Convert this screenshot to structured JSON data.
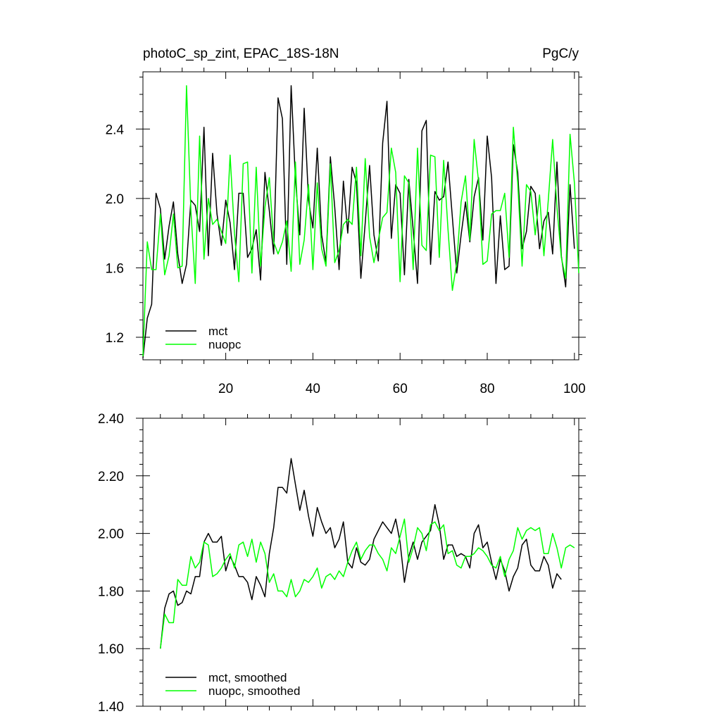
{
  "chart_data": [
    {
      "type": "line",
      "title": "photoC_sp_zint, EPAC_18S-18N",
      "units": "PgC/y",
      "xlim": [
        1,
        101
      ],
      "ylim": [
        1.07,
        2.73
      ],
      "x_ticks": [
        20,
        40,
        60,
        80,
        100
      ],
      "y_ticks": [
        1.2,
        1.6,
        2.0,
        2.4
      ],
      "y_tick_labels": [
        "1.2",
        "1.6",
        "2.0",
        "2.4"
      ],
      "grid": false,
      "legend_position": "bottom-left",
      "series": [
        {
          "name": "mct",
          "color": "#000000",
          "x_start": 1,
          "values": [
            1.08,
            1.31,
            1.39,
            2.03,
            1.94,
            1.65,
            1.84,
            1.98,
            1.68,
            1.51,
            1.62,
            1.99,
            1.96,
            1.81,
            2.41,
            1.67,
            2.26,
            1.91,
            1.73,
            1.99,
            1.86,
            1.59,
            2.03,
            2.03,
            1.66,
            1.71,
            1.82,
            1.53,
            2.15,
            1.93,
            1.68,
            2.58,
            2.46,
            1.62,
            2.65,
            2.11,
            1.79,
            2.52,
            1.99,
            1.83,
            2.29,
            1.79,
            1.63,
            2.24,
            1.95,
            1.59,
            2.1,
            1.8,
            2.18,
            2.09,
            1.54,
            1.86,
            2.19,
            1.79,
            1.64,
            2.32,
            2.56,
            1.77,
            2.08,
            2.03,
            1.56,
            2.11,
            1.82,
            1.51,
            2.39,
            2.45,
            1.62,
            2.04,
            1.99,
            2.01,
            2.21,
            1.89,
            1.57,
            1.79,
            1.98,
            1.75,
            2.01,
            2.12,
            1.76,
            2.36,
            2.12,
            1.51,
            1.9,
            1.59,
            1.61,
            2.31,
            2.15,
            1.71,
            1.81,
            2.07,
            2.03,
            1.71,
            1.87,
            1.92,
            1.68,
            2.21,
            1.67,
            1.49,
            2.08,
            1.71
          ]
        },
        {
          "name": "nuopc",
          "color": "#00ff00",
          "x_start": 1,
          "values": [
            1.09,
            1.75,
            1.59,
            1.59,
            1.91,
            1.56,
            1.67,
            1.91,
            1.6,
            1.61,
            2.65,
            1.93,
            1.51,
            2.36,
            1.65,
            2.0,
            1.85,
            1.88,
            1.81,
            1.74,
            2.25,
            1.8,
            1.52,
            2.2,
            2.21,
            1.57,
            2.18,
            1.61,
            1.95,
            2.12,
            1.75,
            1.68,
            1.75,
            1.87,
            1.58,
            2.21,
            1.62,
            1.76,
            2.08,
            1.59,
            2.09,
            1.71,
            1.61,
            2.2,
            1.63,
            1.7,
            1.85,
            1.88,
            1.85,
            2.18,
            1.67,
            2.23,
            1.78,
            1.63,
            1.76,
            1.89,
            1.92,
            2.29,
            2.15,
            1.52,
            2.13,
            2.09,
            1.59,
            2.29,
            1.73,
            1.7,
            2.25,
            2.24,
            1.66,
            2.22,
            1.82,
            1.47,
            1.63,
            1.98,
            2.13,
            1.76,
            2.34,
            2.1,
            1.62,
            1.64,
            1.91,
            1.93,
            1.93,
            2.03,
            1.66,
            2.41,
            2.09,
            1.61,
            2.08,
            2.04,
            1.79,
            2.02,
            1.67,
            1.99,
            2.34,
            1.95,
            1.66,
            1.54,
            2.37,
            2.09,
            1.57
          ]
        }
      ]
    },
    {
      "type": "line",
      "xlim": [
        1,
        101
      ],
      "ylim": [
        1.4,
        2.4
      ],
      "x_ticks": [
        20,
        40,
        60,
        80,
        100
      ],
      "y_ticks": [
        1.4,
        1.6,
        1.8,
        2.0,
        2.2,
        2.4
      ],
      "y_tick_labels": [
        "1.40",
        "1.60",
        "1.80",
        "2.00",
        "2.20",
        "2.40"
      ],
      "grid": false,
      "legend_position": "bottom-left",
      "series": [
        {
          "name": "mct, smoothed",
          "color": "#000000",
          "x_start": 5,
          "values": [
            1.6,
            1.74,
            1.79,
            1.8,
            1.75,
            1.76,
            1.8,
            1.79,
            1.85,
            1.85,
            1.97,
            2.0,
            1.97,
            1.97,
            1.99,
            1.87,
            1.92,
            1.89,
            1.85,
            1.85,
            1.83,
            1.77,
            1.85,
            1.82,
            1.78,
            1.93,
            2.02,
            2.16,
            2.16,
            2.14,
            2.26,
            2.17,
            2.08,
            2.15,
            2.06,
            1.99,
            2.09,
            2.04,
            2.0,
            2.02,
            1.95,
            1.98,
            2.04,
            1.9,
            1.88,
            1.95,
            1.9,
            1.89,
            1.91,
            1.98,
            2.01,
            2.04,
            2.02,
            2.0,
            2.05,
            1.97,
            1.83,
            1.92,
            1.97,
            1.91,
            1.97,
            1.99,
            2.01,
            2.1,
            2.03,
            1.91,
            1.96,
            1.96,
            1.92,
            1.93,
            1.92,
            1.88,
            2.0,
            2.03,
            1.95,
            1.97,
            1.9,
            1.84,
            1.91,
            1.87,
            1.8,
            1.85,
            1.88,
            1.96,
            1.98,
            1.89,
            1.87,
            1.87,
            1.92,
            1.89,
            1.81,
            1.86,
            1.84
          ]
        },
        {
          "name": "nuopc, smoothed",
          "color": "#00ff00",
          "x_start": 5,
          "values": [
            1.6,
            1.72,
            1.69,
            1.69,
            1.84,
            1.82,
            1.82,
            1.92,
            1.88,
            1.9,
            1.97,
            1.96,
            1.85,
            1.86,
            1.88,
            1.91,
            1.93,
            1.88,
            1.96,
            1.97,
            1.92,
            1.98,
            1.9,
            1.97,
            1.93,
            1.83,
            1.86,
            1.8,
            1.8,
            1.78,
            1.84,
            1.78,
            1.8,
            1.84,
            1.83,
            1.85,
            1.88,
            1.81,
            1.85,
            1.86,
            1.84,
            1.87,
            1.85,
            1.9,
            1.94,
            1.97,
            1.91,
            1.94,
            1.96,
            1.96,
            1.93,
            1.91,
            1.87,
            1.95,
            1.93,
            1.99,
            2.05,
            1.9,
            1.95,
            2.02,
            2.0,
            1.94,
            2.03,
            2.04,
            2.01,
            2.03,
            1.93,
            1.94,
            1.89,
            1.88,
            1.92,
            1.92,
            1.93,
            1.95,
            1.94,
            1.92,
            1.89,
            1.88,
            1.92,
            1.85,
            1.91,
            1.94,
            2.02,
            1.98,
            2.01,
            2.02,
            2.01,
            2.02,
            1.93,
            1.93,
            2.0,
            1.95,
            1.88,
            1.95,
            1.96,
            1.95
          ]
        }
      ]
    }
  ]
}
